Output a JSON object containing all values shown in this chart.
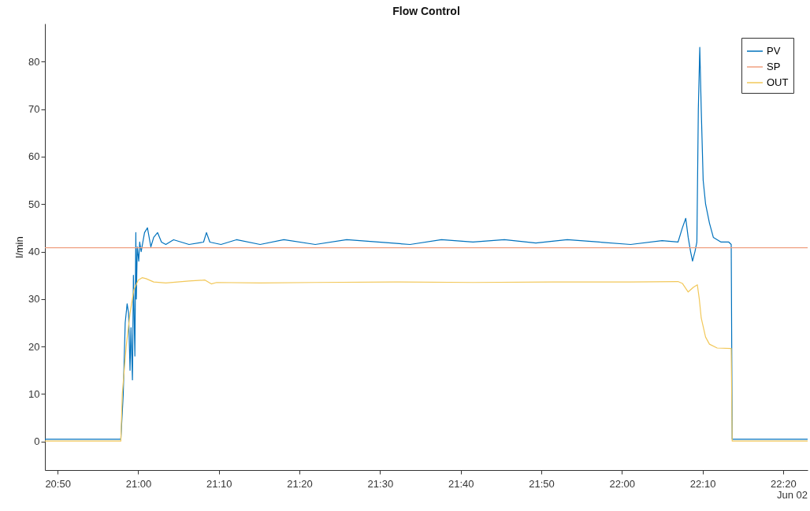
{
  "chart_data": {
    "type": "line",
    "title": "Flow Control",
    "ylabel": "l/min",
    "annotations": [
      "Jun 02"
    ],
    "legend": "top right",
    "grid": false,
    "xlim": [
      20.807,
      22.384
    ],
    "ylim": [
      -6,
      88
    ],
    "yticks": [
      0,
      10,
      20,
      30,
      40,
      50,
      60,
      70,
      80
    ],
    "xticks": [
      {
        "value": 20.8333,
        "label": "20:50"
      },
      {
        "value": 21,
        "label": "21:00"
      },
      {
        "value": 21.1667,
        "label": "21:10"
      },
      {
        "value": 21.3333,
        "label": "21:20"
      },
      {
        "value": 21.5,
        "label": "21:30"
      },
      {
        "value": 21.6667,
        "label": "21:40"
      },
      {
        "value": 21.8333,
        "label": "21:50"
      },
      {
        "value": 22,
        "label": "22:00"
      },
      {
        "value": 22.1667,
        "label": "22:10"
      },
      {
        "value": 22.3333,
        "label": "22:20"
      }
    ],
    "series": [
      {
        "name": "PV",
        "color": "#0072bd",
        "x": [
          20.807,
          20.962,
          20.964,
          20.969,
          20.973,
          20.977,
          20.98,
          20.983,
          20.985,
          20.988,
          20.99,
          20.993,
          20.995,
          20.996,
          20.998,
          21.001,
          21.003,
          21.006,
          21.013,
          21.019,
          21.026,
          21.032,
          21.04,
          21.048,
          21.057,
          21.073,
          21.105,
          21.135,
          21.141,
          21.148,
          21.171,
          21.203,
          21.252,
          21.301,
          21.366,
          21.431,
          21.496,
          21.562,
          21.627,
          21.692,
          21.757,
          21.822,
          21.887,
          21.953,
          22.018,
          22.083,
          22.116,
          22.125,
          22.132,
          22.137,
          22.142,
          22.146,
          22.151,
          22.155,
          22.158,
          22.161,
          22.164,
          22.168,
          22.173,
          22.181,
          22.189,
          22.205,
          22.221,
          22.226,
          22.228,
          22.238,
          22.384
        ],
        "values": [
          0.5,
          0.5,
          0.5,
          10,
          25,
          29,
          27,
          15,
          24,
          13,
          35,
          18,
          44,
          30,
          41,
          38,
          42,
          40,
          44,
          45,
          41,
          43,
          44,
          42,
          41.5,
          42.5,
          41.5,
          42,
          44,
          42,
          41.5,
          42.5,
          41.5,
          42.5,
          41.5,
          42.5,
          42,
          41.5,
          42.5,
          42,
          42.5,
          41.8,
          42.5,
          42,
          41.5,
          42.3,
          42,
          45,
          47,
          43,
          40,
          38,
          40,
          42,
          70,
          83,
          70,
          55,
          50,
          46,
          43,
          42,
          42,
          41.5,
          0.5,
          0.5,
          0.5
        ]
      },
      {
        "name": "SP",
        "color": "#f0a080",
        "x": [
          20.807,
          22.384
        ],
        "values": [
          40.8,
          40.8
        ]
      },
      {
        "name": "OUT",
        "color": "#f2c85a",
        "x": [
          20.807,
          20.964,
          20.967,
          20.975,
          20.983,
          20.991,
          21.0,
          21.008,
          21.016,
          21.032,
          21.057,
          21.105,
          21.138,
          21.151,
          21.162,
          21.252,
          21.366,
          21.529,
          21.692,
          21.855,
          22.018,
          22.116,
          22.125,
          22.137,
          22.148,
          22.156,
          22.16,
          22.164,
          22.173,
          22.181,
          22.197,
          22.226,
          22.228,
          22.238,
          22.384
        ],
        "values": [
          0.1,
          0.1,
          10,
          20,
          27,
          32,
          34,
          34.5,
          34.3,
          33.6,
          33.4,
          33.8,
          34,
          33.2,
          33.5,
          33.4,
          33.5,
          33.6,
          33.5,
          33.6,
          33.6,
          33.7,
          33.3,
          31.5,
          32.5,
          33,
          30,
          26,
          22,
          20.5,
          19.7,
          19.6,
          0.1,
          0.1,
          0.1
        ]
      }
    ]
  }
}
